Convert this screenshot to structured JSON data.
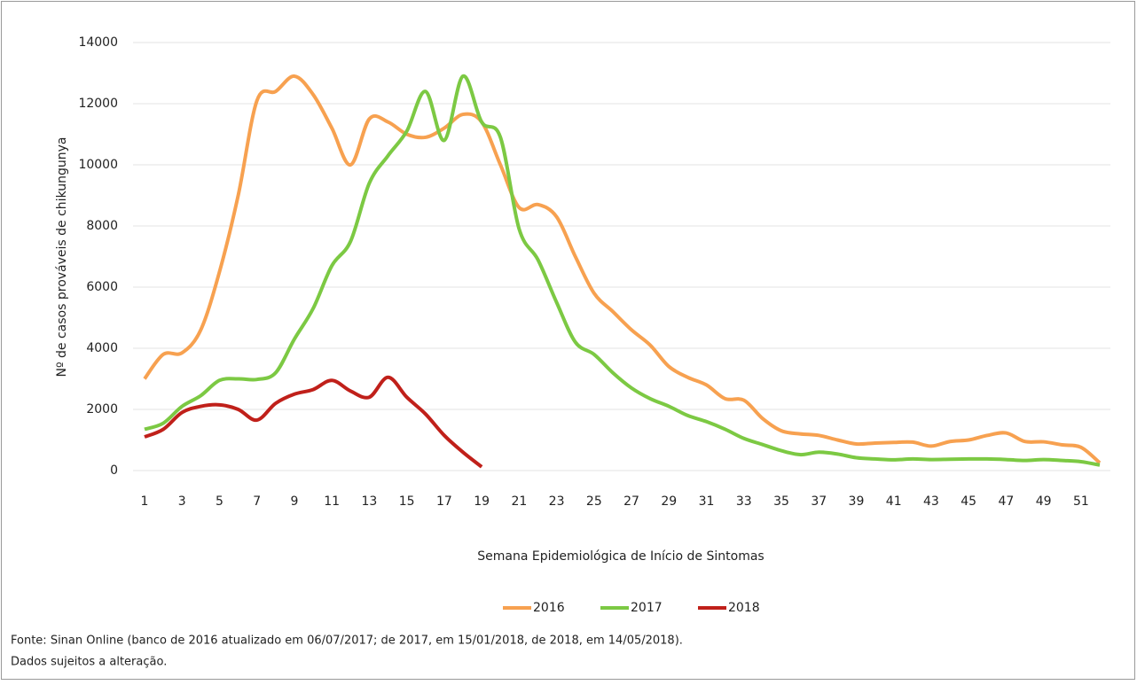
{
  "chart_data": {
    "type": "line",
    "y_label": "Nº de casos prováveis de chikungunya",
    "x_label": "Semana Epidemiológica de Início de Sintomas",
    "source": "Fonte: Sinan Online (banco de 2016 atualizado em 06/07/2017; de 2017, em 15/01/2018, de 2018, em 14/05/2018).",
    "note": "Dados sujeitos a alteração.",
    "x": [
      1,
      2,
      3,
      4,
      5,
      6,
      7,
      8,
      9,
      10,
      11,
      12,
      13,
      14,
      15,
      16,
      17,
      18,
      19,
      20,
      21,
      22,
      23,
      24,
      25,
      26,
      27,
      28,
      29,
      30,
      31,
      32,
      33,
      34,
      35,
      36,
      37,
      38,
      39,
      40,
      41,
      42,
      43,
      44,
      45,
      46,
      47,
      48,
      49,
      50,
      51,
      52
    ],
    "series": [
      {
        "name": "2016",
        "color": "#f7a150",
        "values": [
          3000,
          3800,
          3850,
          4600,
          6500,
          9000,
          12100,
          12400,
          12900,
          12300,
          11200,
          10000,
          11500,
          11400,
          11000,
          10900,
          11200,
          11650,
          11400,
          10000,
          8600,
          8700,
          8300,
          7000,
          5800,
          5200,
          4600,
          4100,
          3400,
          3050,
          2800,
          2350,
          2300,
          1700,
          1300,
          1200,
          1150,
          1000,
          870,
          900,
          920,
          930,
          800,
          950,
          1000,
          1150,
          1230,
          950,
          940,
          840,
          760,
          250
        ]
      },
      {
        "name": "2017",
        "color": "#7cc943",
        "values": [
          1350,
          1550,
          2100,
          2450,
          2950,
          3000,
          2980,
          3200,
          4300,
          5300,
          6700,
          7500,
          9400,
          10300,
          11100,
          12400,
          10800,
          12900,
          11400,
          10900,
          7900,
          6900,
          5500,
          4200,
          3800,
          3200,
          2700,
          2350,
          2100,
          1800,
          1600,
          1350,
          1050,
          850,
          650,
          520,
          600,
          540,
          420,
          380,
          350,
          380,
          360,
          370,
          380,
          380,
          360,
          330,
          360,
          330,
          290,
          180
        ]
      },
      {
        "name": "2018",
        "color": "#c0201a",
        "values": [
          1100,
          1350,
          1900,
          2100,
          2150,
          2000,
          1650,
          2200,
          2500,
          2650,
          2950,
          2600,
          2400,
          3050,
          2400,
          1850,
          1150,
          600,
          120,
          null,
          null,
          null,
          null,
          null,
          null,
          null,
          null,
          null,
          null,
          null,
          null,
          null,
          null,
          null,
          null,
          null,
          null,
          null,
          null,
          null,
          null,
          null,
          null,
          null,
          null,
          null,
          null,
          null,
          null,
          null,
          null,
          null
        ]
      }
    ],
    "xlim": [
      1,
      52
    ],
    "xticks": [
      1,
      3,
      5,
      7,
      9,
      11,
      13,
      15,
      17,
      19,
      21,
      23,
      25,
      27,
      29,
      31,
      33,
      35,
      37,
      39,
      41,
      43,
      45,
      47,
      49,
      51
    ],
    "ylim": [
      0,
      14000
    ],
    "yticks": [
      0,
      2000,
      4000,
      6000,
      8000,
      10000,
      12000,
      14000
    ],
    "grid": true,
    "legend": "bottom"
  }
}
